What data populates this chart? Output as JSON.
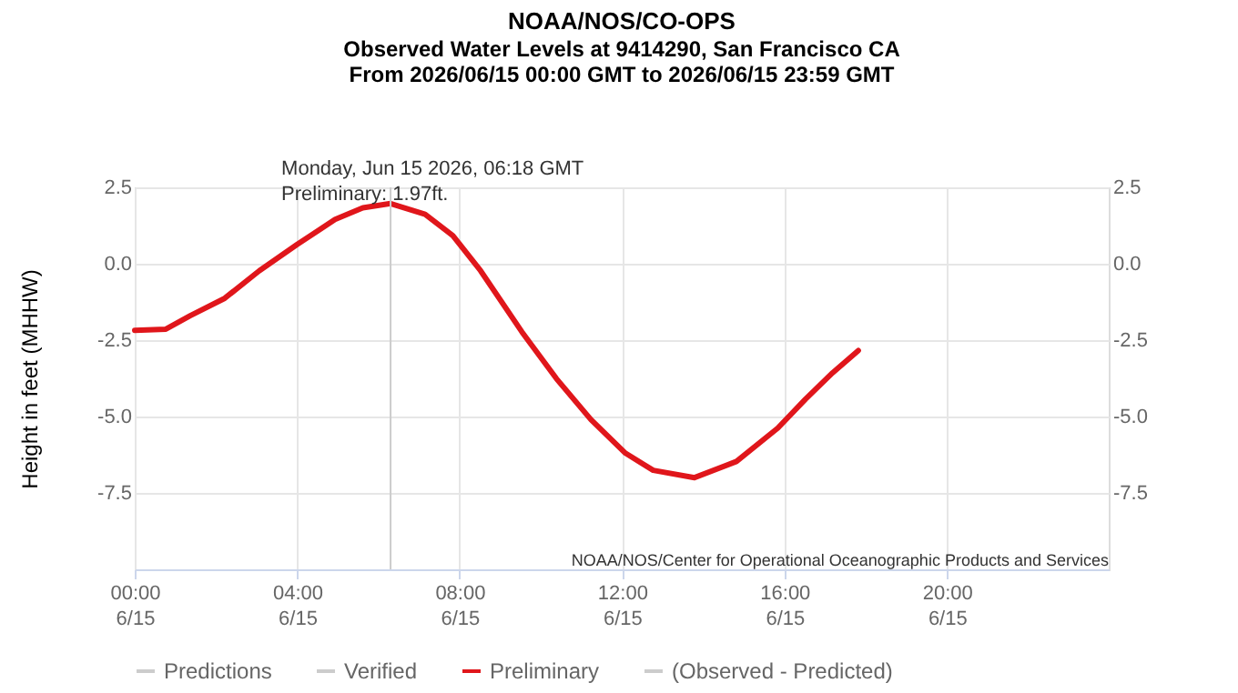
{
  "chart_data": {
    "type": "line",
    "title": "NOAA/NOS/CO-OPS",
    "subtitle": "Observed Water Levels at 9414290, San Francisco CA\nFrom 2026/06/15 00:00 GMT to 2026/06/15 23:59 GMT",
    "ylabel": "Height in feet (MHHW)",
    "x": [
      "2026-06-15T00:00",
      "2026-06-15T00:46",
      "2026-06-15T01:22",
      "2026-06-15T02:13",
      "2026-06-15T03:04",
      "2026-06-15T04:00",
      "2026-06-15T04:56",
      "2026-06-15T05:37",
      "2026-06-15T06:18",
      "2026-06-15T07:09",
      "2026-06-15T07:50",
      "2026-06-15T08:31",
      "2026-06-15T09:32",
      "2026-06-15T10:23",
      "2026-06-15T11:14",
      "2026-06-15T12:05",
      "2026-06-15T12:46",
      "2026-06-15T13:47",
      "2026-06-15T14:49",
      "2026-06-15T15:50",
      "2026-06-15T16:31",
      "2026-06-15T17:11",
      "2026-06-15T17:49"
    ],
    "series": [
      {
        "name": "Predictions",
        "color": "#cccccc",
        "values": [
          null,
          null,
          null,
          null,
          null,
          null,
          null,
          null,
          null,
          null,
          null,
          null,
          null,
          null,
          null,
          null,
          null,
          null,
          null,
          null,
          null,
          null,
          null
        ]
      },
      {
        "name": "Verified",
        "color": "#cccccc",
        "values": [
          null,
          null,
          null,
          null,
          null,
          null,
          null,
          null,
          null,
          null,
          null,
          null,
          null,
          null,
          null,
          null,
          null,
          null,
          null,
          null,
          null,
          null,
          null
        ]
      },
      {
        "name": "Preliminary",
        "color": "#e0161b",
        "values": [
          -2.18,
          -2.14,
          -1.7,
          -1.13,
          -0.23,
          0.63,
          1.45,
          1.83,
          1.97,
          1.62,
          0.92,
          -0.23,
          -2.23,
          -3.76,
          -5.1,
          -6.2,
          -6.76,
          -7.0,
          -6.47,
          -5.38,
          -4.43,
          -3.57,
          -2.84
        ]
      },
      {
        "name": "(Observed - Predicted)",
        "color": "#cccccc",
        "values": [
          null,
          null,
          null,
          null,
          null,
          null,
          null,
          null,
          null,
          null,
          null,
          null,
          null,
          null,
          null,
          null,
          null,
          null,
          null,
          null,
          null,
          null,
          null
        ]
      }
    ],
    "xlim": [
      "2026-06-15T00:00",
      "2026-06-15T23:59"
    ],
    "xticks": [
      {
        "value": "2026-06-15T00:00",
        "label": "00:00\n6/15"
      },
      {
        "value": "2026-06-15T04:00",
        "label": "04:00\n6/15"
      },
      {
        "value": "2026-06-15T08:00",
        "label": "08:00\n6/15"
      },
      {
        "value": "2026-06-15T12:00",
        "label": "12:00\n6/15"
      },
      {
        "value": "2026-06-15T16:00",
        "label": "16:00\n6/15"
      },
      {
        "value": "2026-06-15T20:00",
        "label": "20:00\n6/15"
      }
    ],
    "ylim": [
      -10,
      2.5
    ],
    "yticks": [
      {
        "value": 2.5,
        "label": "2.5"
      },
      {
        "value": 0,
        "label": "0.0"
      },
      {
        "value": -2.5,
        "label": "-2.5"
      },
      {
        "value": -5,
        "label": "-5.0"
      },
      {
        "value": -7.5,
        "label": "-7.5"
      }
    ],
    "y2lim": [
      -10,
      2.5
    ],
    "y2ticks": [
      {
        "value": 2.5,
        "label": "2.5"
      },
      {
        "value": 0,
        "label": "0.0"
      },
      {
        "value": -2.5,
        "label": "-2.5"
      },
      {
        "value": -5,
        "label": "-5.0"
      },
      {
        "value": -7.5,
        "label": "-7.5"
      }
    ],
    "ref_lines": [
      {
        "axis": "x",
        "value": "2026-06-15T06:18",
        "color": "#cccccc"
      }
    ],
    "annotations": [
      {
        "text": "Monday, Jun 15 2026, 06:18 GMT\nPreliminary: 1.97ft.",
        "x": "2026-06-15T06:18",
        "y": 1.97
      },
      "NOAA/NOS/Center for Operational Oceanographic Products and Services"
    ],
    "grid": true,
    "legend": "bottom",
    "marker": "none",
    "line_style": "solid"
  }
}
